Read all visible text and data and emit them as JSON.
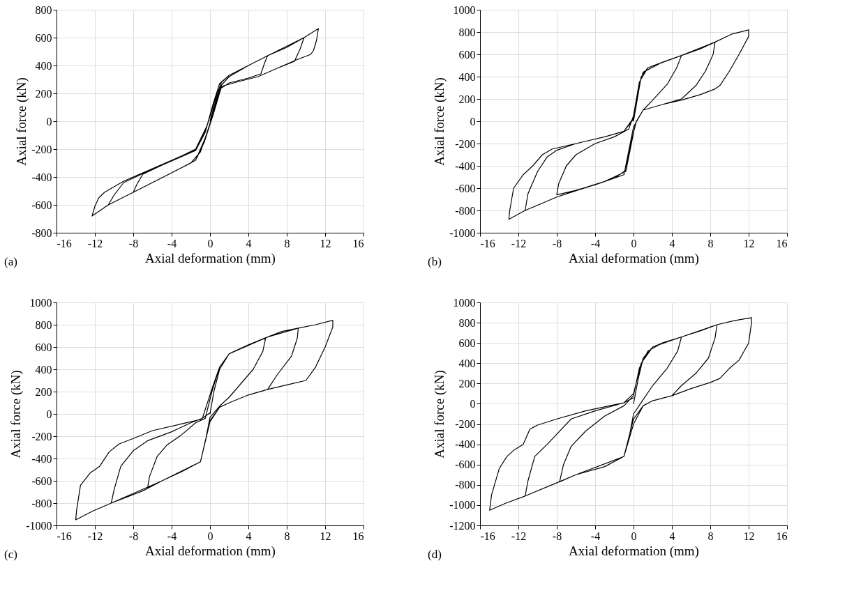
{
  "chart_data": [
    {
      "type": "line",
      "xlabel": "Axial deformation (mm)",
      "ylabel": "Axial force (kN)",
      "xlim": [
        -16,
        16
      ],
      "xticks": [
        -16,
        -12,
        -8,
        -4,
        0,
        4,
        8,
        12,
        16
      ],
      "ylim": [
        -800,
        800
      ],
      "yticks": [
        -800,
        -600,
        -400,
        -200,
        0,
        200,
        400,
        600,
        800
      ],
      "grid": true,
      "annotations": [
        "(a)"
      ],
      "series": [
        {
          "color": "#000000",
          "x": [
            0,
            0.6,
            1.2,
            2,
            4,
            6,
            5.7,
            5.3,
            4,
            2,
            1,
            0.3,
            -0.3,
            -1,
            -2,
            -4,
            -6,
            -8,
            -7.6,
            -7,
            -5,
            -3,
            -1.5,
            -0.5,
            0.3,
            1,
            2,
            4,
            6,
            8,
            9.8,
            9.4,
            8.8,
            7,
            5,
            3,
            1.2,
            0.3,
            -0.5,
            -1.5,
            -4,
            -8,
            -10.6,
            -10,
            -9,
            -7,
            -5,
            -3,
            -1.5,
            -0.4,
            0.5,
            1.2,
            2,
            6,
            9.8,
            11.3,
            11.1,
            10.8,
            10.5,
            9,
            7,
            5,
            3,
            1.2,
            0.2,
            -0.6,
            -1.5,
            -4,
            -8,
            -10.6,
            -12.3,
            -12,
            -11.6,
            -11,
            -9,
            -7,
            -5,
            -3,
            -1.5,
            -0.3,
            0.3
          ],
          "values": [
            0,
            150,
            260,
            320,
            400,
            470,
            420,
            340,
            310,
            275,
            230,
            50,
            -80,
            -220,
            -300,
            -370,
            -440,
            -510,
            -450,
            -380,
            -315,
            -255,
            -210,
            -80,
            120,
            270,
            330,
            400,
            470,
            530,
            600,
            520,
            430,
            380,
            320,
            285,
            250,
            40,
            -120,
            -280,
            -370,
            -510,
            -600,
            -530,
            -440,
            -375,
            -315,
            -255,
            -205,
            -50,
            150,
            280,
            330,
            470,
            600,
            665,
            580,
            510,
            480,
            440,
            380,
            320,
            285,
            250,
            20,
            -150,
            -280,
            -370,
            -510,
            -600,
            -680,
            -610,
            -550,
            -510,
            -430,
            -370,
            -310,
            -250,
            -200,
            -30,
            100
          ]
        }
      ]
    },
    {
      "type": "line",
      "xlabel": "Axial deformation (mm)",
      "ylabel": "Axial force (kN)",
      "xlim": [
        -16,
        16
      ],
      "xticks": [
        -16,
        -12,
        -8,
        -4,
        0,
        4,
        8,
        12,
        16
      ],
      "ylim": [
        -1000,
        1000
      ],
      "yticks": [
        -1000,
        -800,
        -600,
        -400,
        -200,
        0,
        200,
        400,
        600,
        800,
        1000
      ],
      "grid": true,
      "annotations": [
        "(b)"
      ],
      "series": [
        {
          "color": "#000000",
          "x": [
            0,
            0.4,
            0.8,
            1.5,
            3,
            5,
            4.5,
            3.5,
            2,
            1,
            0.3,
            -0.3,
            -0.8,
            -2,
            -4,
            -6,
            -8,
            -7.8,
            -7,
            -6,
            -4,
            -2,
            -0.5,
            0,
            0.5,
            1,
            3,
            5,
            7,
            8.5,
            8.3,
            7.5,
            6.5,
            5,
            3,
            1,
            0.2,
            -0.8,
            -3,
            -6,
            -8,
            -11.3,
            -11,
            -10,
            -9,
            -8,
            -6,
            -3,
            -1,
            0,
            0.6,
            1.5,
            5,
            8.5,
            10.2,
            12,
            12,
            11,
            10,
            9,
            8.5,
            7,
            5,
            3,
            1,
            0,
            -1,
            -3,
            -8,
            -11.3,
            -13,
            -12.9,
            -12.5,
            -11.5,
            -10.5,
            -9.5,
            -8.5,
            -6,
            -3,
            -1,
            0
          ],
          "values": [
            0,
            200,
            400,
            480,
            530,
            590,
            480,
            330,
            190,
            100,
            0,
            -200,
            -440,
            -510,
            -570,
            -620,
            -660,
            -560,
            -400,
            -300,
            -200,
            -140,
            -70,
            50,
            300,
            440,
            530,
            590,
            650,
            710,
            600,
            450,
            320,
            200,
            150,
            100,
            -20,
            -450,
            -540,
            -620,
            -680,
            -800,
            -650,
            -450,
            -320,
            -260,
            -200,
            -140,
            -90,
            30,
            350,
            480,
            590,
            710,
            780,
            820,
            760,
            600,
            450,
            320,
            290,
            240,
            190,
            150,
            100,
            -50,
            -480,
            -540,
            -680,
            -800,
            -880,
            -800,
            -600,
            -480,
            -400,
            -300,
            -250,
            -200,
            -140,
            -90,
            20
          ]
        }
      ]
    },
    {
      "type": "line",
      "xlabel": "Axial deformation (mm)",
      "ylabel": "Axial force (kN)",
      "xlim": [
        -16,
        16
      ],
      "xticks": [
        -16,
        -12,
        -8,
        -4,
        0,
        4,
        8,
        12,
        16
      ],
      "ylim": [
        -1000,
        1000
      ],
      "yticks": [
        -1000,
        -800,
        -600,
        -400,
        -200,
        0,
        200,
        400,
        600,
        800,
        1000
      ],
      "grid": true,
      "annotations": [
        "(c)"
      ],
      "series": [
        {
          "color": "#000000",
          "x": [
            0,
            0.4,
            1,
            2,
            4,
            5.8,
            5.5,
            4.5,
            3,
            2,
            1,
            0,
            -0.5,
            -1,
            -3,
            -5,
            -6.5,
            -6.3,
            -5.5,
            -4.5,
            -3,
            -1.5,
            -0.5,
            0.2,
            1,
            2,
            4,
            6,
            7.5,
            9.2,
            9.1,
            8.5,
            7,
            6,
            4,
            2,
            1,
            0,
            -1,
            -3,
            -5,
            -7,
            -10.3,
            -10,
            -9.3,
            -8,
            -6.5,
            -4,
            -2,
            -0.8,
            0.3,
            1,
            2,
            6,
            9.2,
            11,
            12.8,
            12.8,
            12,
            11,
            10,
            8,
            6,
            4,
            2,
            1,
            0,
            -1,
            -5,
            -10.3,
            -12.2,
            -14,
            -13.9,
            -13.5,
            -12.5,
            -11.5,
            -10.5,
            -9.5,
            -8,
            -6,
            -3,
            -1,
            0
          ],
          "values": [
            0,
            200,
            400,
            540,
            620,
            680,
            560,
            400,
            250,
            150,
            70,
            -30,
            -250,
            -430,
            -520,
            -600,
            -660,
            -560,
            -380,
            -280,
            -190,
            -80,
            -40,
            200,
            420,
            540,
            620,
            690,
            740,
            770,
            680,
            520,
            350,
            220,
            170,
            100,
            60,
            -60,
            -430,
            -520,
            -600,
            -690,
            -800,
            -680,
            -470,
            -330,
            -240,
            -160,
            -80,
            -40,
            250,
            420,
            540,
            690,
            770,
            800,
            840,
            780,
            600,
            420,
            300,
            260,
            220,
            170,
            100,
            60,
            -70,
            -430,
            -600,
            -800,
            -870,
            -950,
            -860,
            -640,
            -530,
            -470,
            -340,
            -270,
            -220,
            -150,
            -90,
            -50,
            10
          ]
        }
      ]
    },
    {
      "type": "line",
      "xlabel": "Axial deformation (mm)",
      "ylabel": "Axial force (kN)",
      "xlim": [
        -16,
        16
      ],
      "xticks": [
        -16,
        -12,
        -8,
        -4,
        0,
        4,
        8,
        12,
        16
      ],
      "ylim": [
        -1200,
        1000
      ],
      "yticks": [
        -1200,
        -1000,
        -800,
        -600,
        -400,
        -200,
        0,
        200,
        400,
        600,
        800,
        1000
      ],
      "grid": true,
      "annotations": [
        "(d)"
      ],
      "series": [
        {
          "color": "#000000",
          "x": [
            0,
            0.5,
            1,
            2,
            3,
            5,
            4.6,
            3.5,
            2,
            1,
            0,
            -0.5,
            -1,
            -3,
            -6,
            -7.7,
            -7.3,
            -6.5,
            -5,
            -3,
            -1,
            0,
            0.6,
            1.5,
            3,
            5,
            7,
            8.7,
            8.5,
            7.8,
            6.5,
            5,
            4,
            2,
            1,
            0,
            -1,
            -3,
            -6,
            -8,
            -11.3,
            -11,
            -10.3,
            -9,
            -8,
            -6.5,
            -4,
            -1,
            0,
            0.8,
            2,
            5,
            8.7,
            10.5,
            12.3,
            12.3,
            12,
            11,
            10,
            9,
            8,
            6,
            4,
            2,
            1,
            0,
            -1,
            -6,
            -11.3,
            -13.3,
            -15,
            -14.8,
            -14,
            -13.2,
            -12.5,
            -11.5,
            -10.8,
            -10,
            -8,
            -5,
            -2,
            -1,
            0
          ],
          "values": [
            0,
            250,
            450,
            560,
            600,
            660,
            520,
            350,
            180,
            40,
            -100,
            -350,
            -520,
            -620,
            -700,
            -770,
            -600,
            -420,
            -270,
            -120,
            -20,
            80,
            350,
            520,
            600,
            660,
            720,
            780,
            650,
            450,
            300,
            180,
            80,
            30,
            -20,
            -150,
            -520,
            -620,
            -700,
            -780,
            -910,
            -760,
            -520,
            -400,
            -300,
            -150,
            -70,
            10,
            100,
            400,
            560,
            660,
            780,
            820,
            850,
            800,
            600,
            430,
            350,
            250,
            210,
            150,
            80,
            30,
            -20,
            -200,
            -520,
            -700,
            -910,
            -980,
            -1050,
            -900,
            -640,
            -520,
            -460,
            -400,
            -250,
            -210,
            -150,
            -70,
            -10,
            10,
            60
          ]
        }
      ]
    }
  ]
}
